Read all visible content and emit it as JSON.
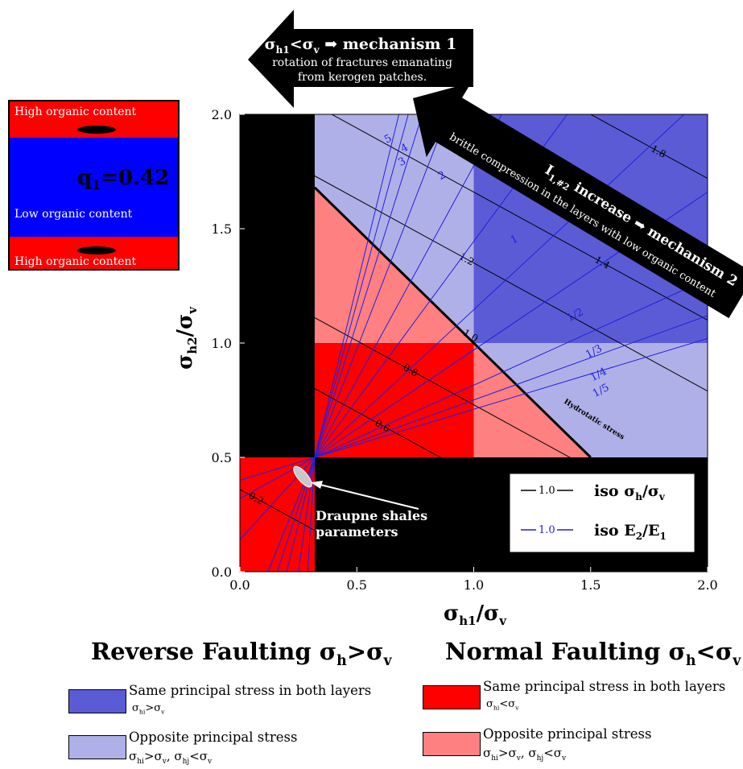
{
  "chart_data": {
    "type": "heatmap",
    "title": "",
    "xlabel": "σh1/σv",
    "ylabel": "σh2/σv",
    "xlim": [
      0.0,
      2.0
    ],
    "ylim": [
      0.0,
      2.0
    ],
    "x_ticks": [
      "0.0",
      "0.5",
      "1.0",
      "1.5",
      "2.0"
    ],
    "y_ticks": [
      "0.0",
      "0.5",
      "1.0",
      "1.5",
      "2.0"
    ],
    "grid": false,
    "vertical_limit_x": 0.32,
    "horizontal_limit_y": 0.5,
    "regions": [
      {
        "category": "reverse-same",
        "color": "#5b5bd6",
        "x": [
          1.0,
          2.0
        ],
        "y": [
          1.0,
          2.0
        ]
      },
      {
        "category": "reverse-opposite",
        "color": "#b0b0e8",
        "description": "s_h1 + s_h2 > 2 within x 0.32–2.0, y 0.5–2.0"
      },
      {
        "category": "normal-same",
        "color": "#ff0000",
        "x": [
          0.32,
          1.0
        ],
        "y": [
          0.5,
          1.0
        ]
      },
      {
        "category": "normal-opposite",
        "color": "#ff8080",
        "description": "s_h1 + s_h2 < 2 within x 0.32–2.0, y 0.5–2.0"
      },
      {
        "category": "normal-same",
        "color": "#ff0000",
        "x": [
          0.0,
          0.32
        ],
        "y": [
          0.0,
          0.5
        ]
      },
      {
        "category": "excluded",
        "color": "#000000",
        "description": "x < 0.32 or y < 0.5, outside the lower-left red block"
      }
    ],
    "iso_stress": {
      "label": "iso σh/σv",
      "line_sample": "1.0",
      "contours": [
        {
          "value": 0.2,
          "label": "0.2"
        },
        {
          "value": 0.6,
          "label": "0.6"
        },
        {
          "value": 0.8,
          "label": "0.8"
        },
        {
          "value": 1.0,
          "label": "1.0",
          "bold": true
        },
        {
          "value": 1.2,
          "label": "1.2"
        },
        {
          "value": 1.4,
          "label": "1.4"
        },
        {
          "value": 1.6,
          "label": "1.6"
        },
        {
          "value": 1.8,
          "label": "1.8"
        }
      ]
    },
    "iso_modulus": {
      "label": "iso E2/E1",
      "line_sample": "1.0",
      "origin": [
        0.32,
        0.5
      ],
      "ray_endpoints": [
        [
          0.12,
          0.0
        ],
        [
          0.16,
          0.0
        ],
        [
          0.2,
          0.0
        ],
        [
          0.25,
          0.0
        ],
        [
          0.29,
          0.0
        ],
        [
          0.0,
          0.14
        ],
        [
          0.0,
          0.32
        ],
        [
          0.0,
          0.4
        ],
        [
          0.68,
          2.0
        ],
        [
          0.72,
          2.0
        ],
        [
          0.78,
          2.0
        ],
        [
          0.89,
          2.0
        ],
        [
          1.12,
          2.0
        ],
        [
          1.4,
          2.0
        ],
        [
          1.9,
          2.0
        ],
        [
          2.0,
          1.66
        ],
        [
          2.0,
          1.28
        ],
        [
          2.0,
          1.12
        ],
        [
          2.0,
          1.02
        ]
      ],
      "ray_labels": [
        {
          "label": "5",
          "at": [
            0.64,
            1.88
          ]
        },
        {
          "label": "4",
          "at": [
            0.71,
            1.84
          ]
        },
        {
          "label": "3",
          "at": [
            0.7,
            1.78
          ]
        },
        {
          "label": "2",
          "at": [
            0.87,
            1.72
          ]
        },
        {
          "label": "1",
          "at": [
            1.18,
            1.44
          ]
        },
        {
          "label": "1/2",
          "at": [
            1.44,
            1.11
          ]
        },
        {
          "label": "1/3",
          "at": [
            1.52,
            0.95
          ]
        },
        {
          "label": "1/4",
          "at": [
            1.54,
            0.85
          ]
        },
        {
          "label": "1/5",
          "at": [
            1.55,
            0.78
          ]
        }
      ]
    },
    "annotations": [
      {
        "text": "Hydrotatic stress",
        "at": [
          1.55,
          0.56
        ]
      },
      {
        "text": "Draupne shales parameters",
        "at": [
          0.29,
          0.41
        ]
      }
    ]
  },
  "arrow1": {
    "title": "σh1<σv ➡ mechanism 1",
    "line1": "rotation of fractures emanating",
    "line2": "from kerogen patches."
  },
  "arrow2": {
    "title": "I1,#2 increase ➡ mechanism 2",
    "line1": "brittle compression in the layers with low organic content"
  },
  "inset": {
    "top_label": "High organic content",
    "middle_label": "Low organic content",
    "bottom_label": "High organic content",
    "q_label": "q1=0.42"
  },
  "legend": {
    "reverse": {
      "title": "Reverse Faulting σh>σv",
      "same_text": "Same principal stress in both layers",
      "same_sub": "σhi>σv",
      "opposite_text": "Opposite principal stress",
      "opposite_sub": "σhi>σv, σhj<σv"
    },
    "normal": {
      "title": "Normal Faulting σh<σv",
      "same_text": "Same principal stress in both layers",
      "same_sub": "σhi<σv",
      "opposite_text": "Opposite principal stress",
      "opposite_sub": "σhi>σv, σhj<σv"
    }
  },
  "colors": {
    "reverse_same": "#5b5bd6",
    "reverse_opposite": "#b0b0e8",
    "normal_same": "#ff0000",
    "normal_opposite": "#ff8080",
    "inset_blue": "#0000ff"
  }
}
